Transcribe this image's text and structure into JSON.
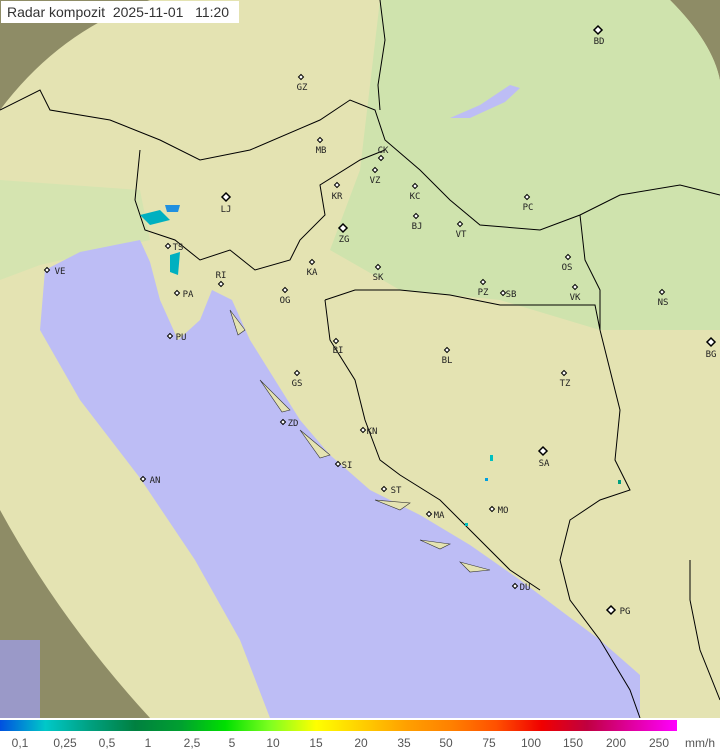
{
  "header": {
    "title": "Radar kompozit",
    "date": "2025-11-01",
    "time": "11:20"
  },
  "map": {
    "colors": {
      "sea": "#bdbdf5",
      "land": "#e4e3b2",
      "lowland": "#cfe3ad",
      "outside_coverage": "#8e8c66",
      "border": "#000000"
    },
    "cities": [
      {
        "code": "GZ",
        "major": false
      },
      {
        "code": "BD",
        "major": true
      },
      {
        "code": "MB",
        "major": false
      },
      {
        "code": "CK",
        "major": false
      },
      {
        "code": "VZ",
        "major": false
      },
      {
        "code": "KR",
        "major": false
      },
      {
        "code": "KC",
        "major": false
      },
      {
        "code": "PC",
        "major": false
      },
      {
        "code": "LJ",
        "major": true
      },
      {
        "code": "ZG",
        "major": true
      },
      {
        "code": "BJ",
        "major": false
      },
      {
        "code": "VT",
        "major": false
      },
      {
        "code": "TS",
        "major": false
      },
      {
        "code": "VE",
        "major": false
      },
      {
        "code": "KA",
        "major": false
      },
      {
        "code": "RI",
        "major": false
      },
      {
        "code": "SK",
        "major": false
      },
      {
        "code": "OS",
        "major": false
      },
      {
        "code": "PZ",
        "major": false
      },
      {
        "code": "SB",
        "major": false
      },
      {
        "code": "VK",
        "major": false
      },
      {
        "code": "NS",
        "major": false
      },
      {
        "code": "PA",
        "major": false
      },
      {
        "code": "OG",
        "major": false
      },
      {
        "code": "PU",
        "major": false
      },
      {
        "code": "BG",
        "major": true
      },
      {
        "code": "BI",
        "major": false
      },
      {
        "code": "BL",
        "major": false
      },
      {
        "code": "TZ",
        "major": false
      },
      {
        "code": "GS",
        "major": false
      },
      {
        "code": "ZD",
        "major": false
      },
      {
        "code": "KN",
        "major": false
      },
      {
        "code": "SA",
        "major": true
      },
      {
        "code": "SI",
        "major": false
      },
      {
        "code": "AN",
        "major": false
      },
      {
        "code": "ST",
        "major": false
      },
      {
        "code": "MO",
        "major": false
      },
      {
        "code": "MA",
        "major": false
      },
      {
        "code": "DU",
        "major": false
      },
      {
        "code": "PG",
        "major": true
      }
    ]
  },
  "legend": {
    "unit": "mm/h",
    "labels": [
      "0,1",
      "0,25",
      "0,5",
      "1",
      "2,5",
      "5",
      "10",
      "15",
      "20",
      "35",
      "50",
      "75",
      "100",
      "150",
      "200",
      "250"
    ],
    "colors": [
      "#0050e0",
      "#00c8c8",
      "#00a080",
      "#008040",
      "#00a030",
      "#00e000",
      "#80ff20",
      "#ffff00",
      "#ffd000",
      "#ffa000",
      "#ff8000",
      "#ff5000",
      "#f00000",
      "#c00040",
      "#e000a0",
      "#ff00ff"
    ]
  }
}
